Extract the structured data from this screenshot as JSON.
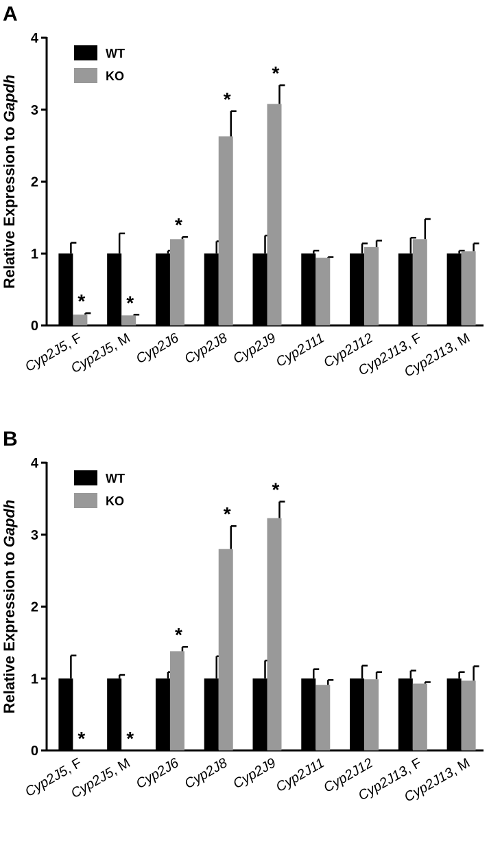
{
  "chart_data": [
    {
      "panel_label": "A",
      "type": "bar",
      "title": "",
      "xlabel": "",
      "ylabel_prefix": "Relative Expression to ",
      "ylabel_gene": "Gapdh",
      "ylim": [
        0,
        4
      ],
      "yticks": [
        "0",
        "1",
        "2",
        "3",
        "4"
      ],
      "categories": [
        {
          "gene": "Cyp2J5",
          "suffix": ", F"
        },
        {
          "gene": "Cyp2J5",
          "suffix": ", M"
        },
        {
          "gene": "Cyp2J6",
          "suffix": ""
        },
        {
          "gene": "Cyp2J8",
          "suffix": ""
        },
        {
          "gene": "Cyp2J9",
          "suffix": ""
        },
        {
          "gene": "Cyp2J11",
          "suffix": ""
        },
        {
          "gene": "Cyp2J12",
          "suffix": ""
        },
        {
          "gene": "Cyp2J13",
          "suffix": ", F"
        },
        {
          "gene": "Cyp2J13",
          "suffix": ", M"
        }
      ],
      "series": [
        {
          "name": "WT",
          "color": "#000000",
          "values": [
            1.0,
            1.0,
            1.0,
            1.0,
            1.0,
            1.0,
            1.0,
            1.0,
            1.0
          ],
          "errors": [
            0.15,
            0.28,
            0.04,
            0.17,
            0.25,
            0.04,
            0.14,
            0.22,
            0.04
          ]
        },
        {
          "name": "KO",
          "color": "#999999",
          "values": [
            0.15,
            0.14,
            1.2,
            2.63,
            3.08,
            0.94,
            1.09,
            1.2,
            1.03
          ],
          "errors": [
            0.02,
            0.01,
            0.03,
            0.35,
            0.26,
            0.01,
            0.09,
            0.28,
            0.11
          ]
        }
      ],
      "significance": [
        "*",
        "*",
        "*",
        "*",
        "*",
        "",
        "",
        "",
        ""
      ],
      "legend": {
        "position": "top-left"
      }
    },
    {
      "panel_label": "B",
      "type": "bar",
      "title": "",
      "xlabel": "",
      "ylabel_prefix": "Relative Expression to ",
      "ylabel_gene": "Gapdh",
      "ylim": [
        0,
        4
      ],
      "yticks": [
        "0",
        "1",
        "2",
        "3",
        "4"
      ],
      "categories": [
        {
          "gene": "Cyp2J5",
          "suffix": ", F"
        },
        {
          "gene": "Cyp2J5",
          "suffix": ", M"
        },
        {
          "gene": "Cyp2J6",
          "suffix": ""
        },
        {
          "gene": "Cyp2J8",
          "suffix": ""
        },
        {
          "gene": "Cyp2J9",
          "suffix": ""
        },
        {
          "gene": "Cyp2J11",
          "suffix": ""
        },
        {
          "gene": "Cyp2J12",
          "suffix": ""
        },
        {
          "gene": "Cyp2J13",
          "suffix": ", F"
        },
        {
          "gene": "Cyp2J13",
          "suffix": ", M"
        }
      ],
      "series": [
        {
          "name": "WT",
          "color": "#000000",
          "values": [
            1.0,
            1.0,
            1.0,
            1.0,
            1.0,
            1.0,
            1.0,
            1.0,
            1.0
          ],
          "errors": [
            0.32,
            0.05,
            0.09,
            0.31,
            0.25,
            0.13,
            0.18,
            0.11,
            0.09
          ]
        },
        {
          "name": "KO",
          "color": "#999999",
          "values": [
            0.0,
            0.0,
            1.38,
            2.8,
            3.23,
            0.91,
            0.99,
            0.93,
            0.97
          ],
          "errors": [
            0.0,
            0.0,
            0.06,
            0.32,
            0.23,
            0.07,
            0.1,
            0.02,
            0.2
          ]
        }
      ],
      "significance": [
        "*",
        "*",
        "*",
        "*",
        "*",
        "",
        "",
        "",
        ""
      ],
      "legend": {
        "position": "top-left"
      }
    }
  ]
}
